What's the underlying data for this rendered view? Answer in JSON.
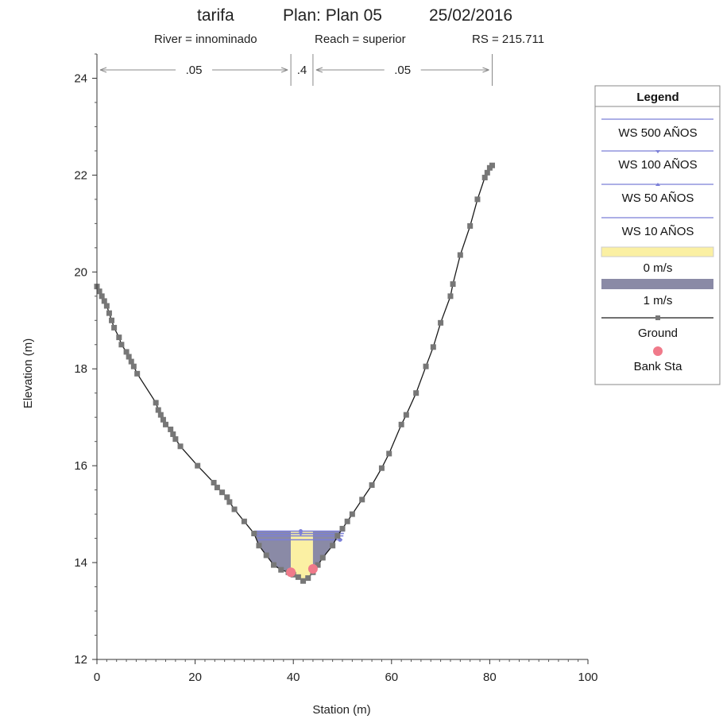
{
  "chart_data": {
    "type": "line",
    "title": {
      "project": "tarifa",
      "plan": "Plan: Plan 05",
      "date": "25/02/2016",
      "river": "River = innominado",
      "reach": "Reach = superior",
      "rs": "RS = 215.711"
    },
    "xlabel": "Station (m)",
    "ylabel": "Elevation (m)",
    "xlim": [
      0,
      100
    ],
    "ylim": [
      12,
      24.5
    ],
    "xticks": [
      0,
      20,
      40,
      60,
      80,
      100
    ],
    "yticks": [
      12,
      14,
      16,
      18,
      20,
      22,
      24
    ],
    "manning_n": [
      {
        "label": ".05",
        "from": 0,
        "to": 39.5
      },
      {
        "label": ".4",
        "from": 39.5,
        "to": 44
      },
      {
        "label": ".05",
        "from": 44,
        "to": 80.5
      }
    ],
    "ground": {
      "x": [
        0,
        0.5,
        1,
        1.5,
        2,
        2.5,
        3,
        3.5,
        4.5,
        5,
        6,
        6.5,
        7,
        7.5,
        8.2,
        12,
        12.5,
        13,
        13.5,
        14,
        15,
        15.5,
        16,
        17,
        20.5,
        23.8,
        24.5,
        25.5,
        26.5,
        27,
        28,
        30,
        32,
        33,
        34.5,
        36,
        37.5,
        39,
        40,
        41,
        42,
        43,
        44,
        45,
        46,
        48,
        49,
        50,
        51,
        52,
        54,
        56,
        58,
        59.5,
        62,
        63,
        65,
        67,
        68.5,
        70,
        72,
        72.5,
        74,
        76,
        77.5,
        79,
        79.5,
        80,
        80.5
      ],
      "y": [
        19.7,
        19.6,
        19.5,
        19.4,
        19.3,
        19.15,
        19.0,
        18.85,
        18.65,
        18.5,
        18.35,
        18.25,
        18.15,
        18.05,
        17.9,
        17.3,
        17.15,
        17.05,
        16.95,
        16.85,
        16.75,
        16.65,
        16.55,
        16.4,
        16.0,
        15.65,
        15.55,
        15.45,
        15.35,
        15.25,
        15.1,
        14.85,
        14.6,
        14.35,
        14.15,
        13.95,
        13.85,
        13.8,
        13.75,
        13.7,
        13.62,
        13.68,
        13.8,
        13.95,
        14.1,
        14.35,
        14.55,
        14.7,
        14.85,
        15.0,
        15.3,
        15.6,
        15.95,
        16.25,
        16.85,
        17.05,
        17.5,
        18.05,
        18.45,
        18.95,
        19.5,
        19.75,
        20.35,
        20.95,
        21.5,
        21.95,
        22.05,
        22.15,
        22.2
      ]
    },
    "bank_stations": [
      {
        "x": 39.5,
        "y": 13.8
      },
      {
        "x": 44,
        "y": 13.87
      }
    ],
    "water_surfaces": [
      {
        "name": "WS 500 AÑOS",
        "elevation": 14.65,
        "x": [
          32,
          50.5
        ]
      },
      {
        "name": "WS 100 AÑOS",
        "elevation": 14.6,
        "x": [
          32.2,
          50.3
        ]
      },
      {
        "name": "WS 50 AÑOS",
        "elevation": 14.55,
        "x": [
          32.4,
          50.2
        ]
      },
      {
        "name": "WS 10 AÑOS",
        "elevation": 14.47,
        "x": [
          32.8,
          50.0
        ]
      }
    ],
    "velocity_fill": [
      {
        "name": "0 m/s",
        "color": "#fbf0a3"
      },
      {
        "name": "1 m/s",
        "color": "#8a8aa6"
      }
    ],
    "legend": {
      "title": "Legend",
      "placement": "right",
      "entries": [
        "WS 500 AÑOS",
        "WS 100 AÑOS",
        "WS 50 AÑOS",
        "WS 10 AÑOS",
        "0 m/s",
        "1 m/s",
        "Ground",
        "Bank Sta"
      ]
    },
    "colors": {
      "ws": "#7b7fd8",
      "ground": "#1a1a1a",
      "ground_marker": "#777777",
      "bank": "#f07a8a",
      "slow": "#fbf0a3",
      "fast": "#8a8aa6"
    }
  }
}
